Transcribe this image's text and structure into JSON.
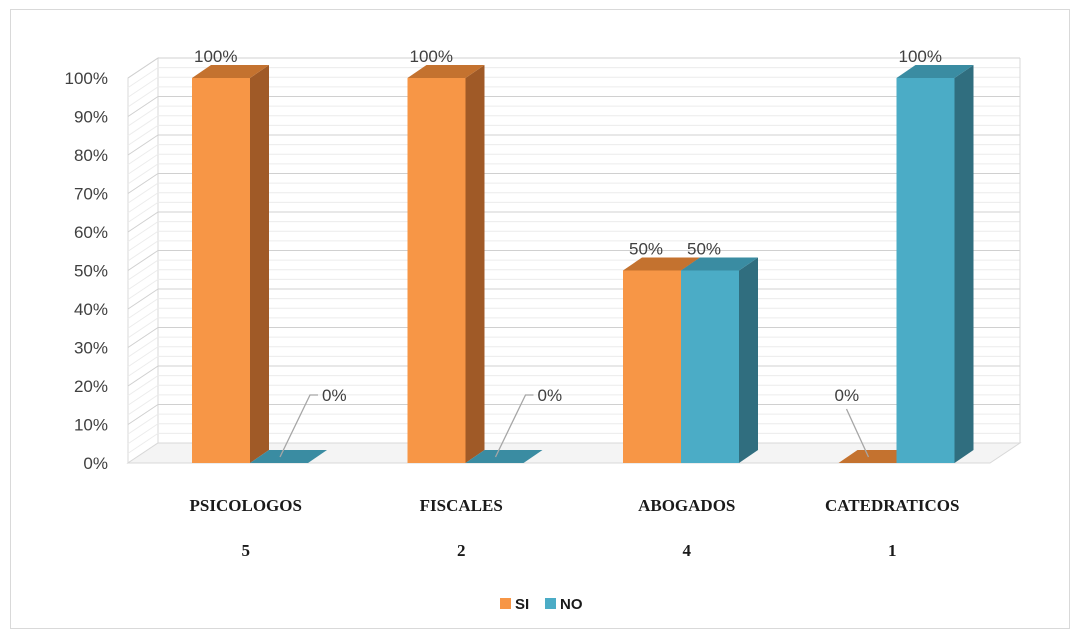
{
  "chart_data": {
    "type": "bar",
    "style": "3d-clustered-column",
    "categories": [
      "PSICOLOGOS",
      "FISCALES",
      "ABOGADOS",
      "CATEDRATICOS"
    ],
    "counts": [
      "5",
      "2",
      "4",
      "1"
    ],
    "series": [
      {
        "name": "SI",
        "values": [
          100,
          100,
          50,
          0
        ],
        "labels": [
          "100%",
          "100%",
          "50%",
          "0%"
        ],
        "color": "#F79646",
        "side_color": "#A05A27",
        "top_color": "#C4722F"
      },
      {
        "name": "NO",
        "values": [
          0,
          0,
          50,
          100
        ],
        "labels": [
          "0%",
          "0%",
          "50%",
          "100%"
        ],
        "color": "#4BACC6",
        "side_color": "#306E7F",
        "top_color": "#3A8CA2"
      }
    ],
    "ylim": [
      0,
      100
    ],
    "yticks": [
      "0%",
      "10%",
      "20%",
      "30%",
      "40%",
      "50%",
      "60%",
      "70%",
      "80%",
      "90%",
      "100%"
    ],
    "grid": true,
    "legend": "bottom",
    "title": "",
    "xlabel": "",
    "ylabel": ""
  }
}
